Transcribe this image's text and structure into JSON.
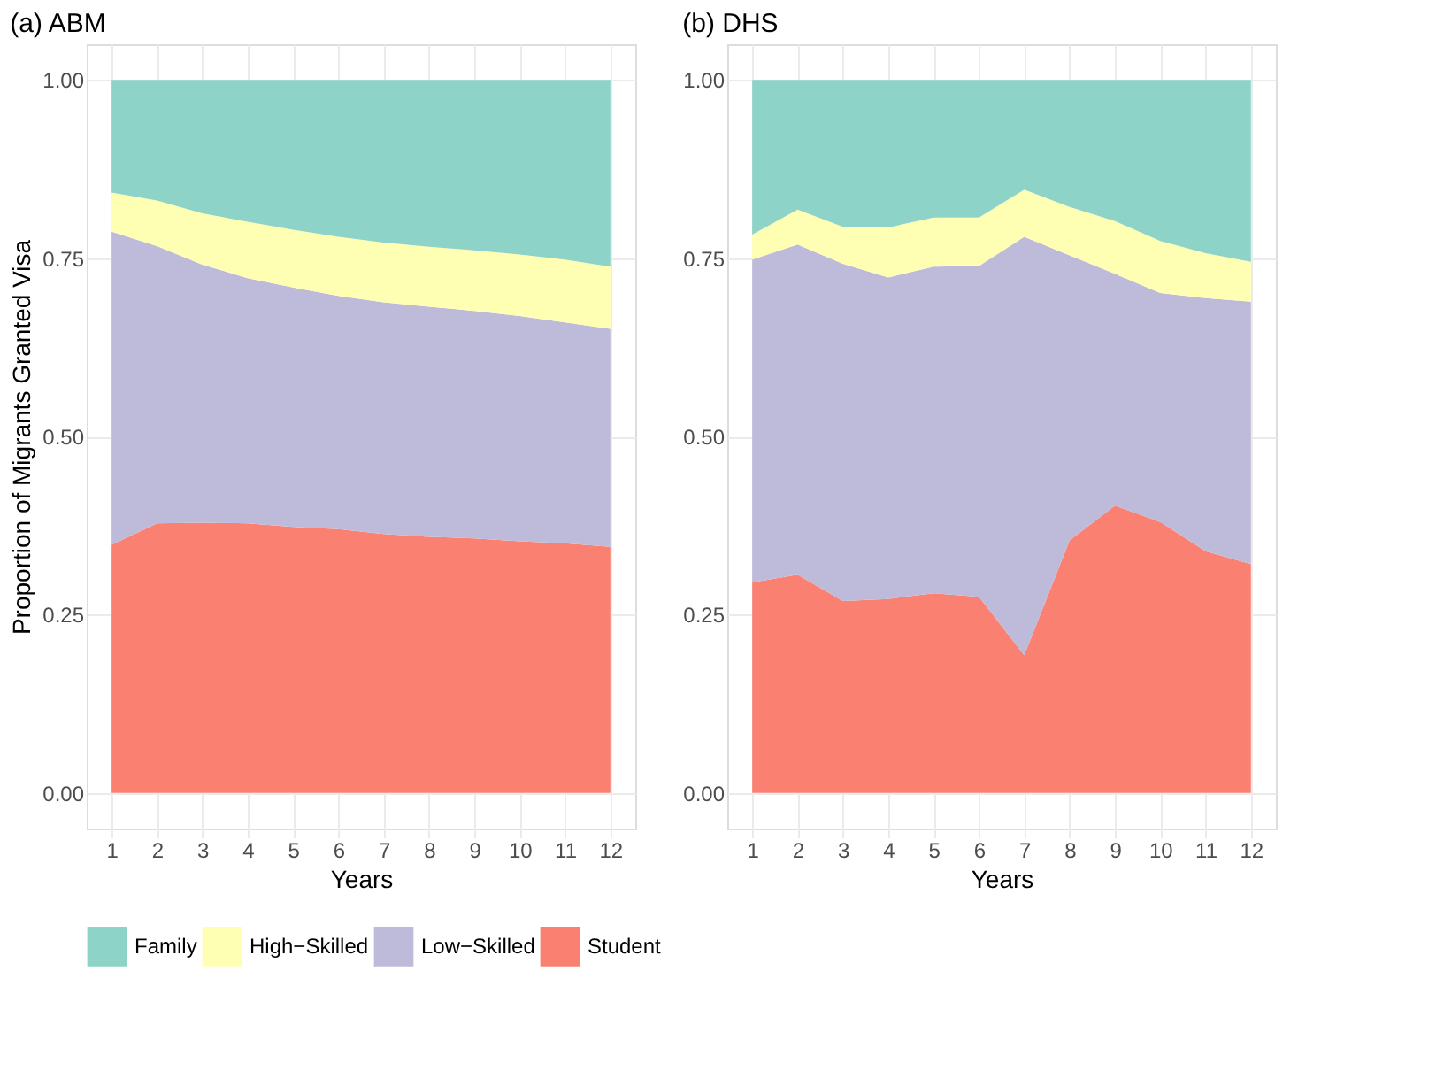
{
  "chart_data": [
    {
      "type": "area",
      "title": "(a) ABM",
      "xlabel": "Years",
      "ylabel": "Proportion of Migrants Granted Visa",
      "stacked": true,
      "grid": true,
      "legend": "bottom",
      "x": [
        1,
        2,
        3,
        4,
        5,
        6,
        7,
        8,
        9,
        10,
        11,
        12
      ],
      "xlim": [
        1,
        12
      ],
      "xticks": [
        1,
        2,
        3,
        4,
        5,
        6,
        7,
        8,
        9,
        10,
        11,
        12
      ],
      "ylim": [
        0,
        1
      ],
      "yticks": [
        {
          "value": 0,
          "label": "0.00"
        },
        {
          "value": 0.25,
          "label": "0.25"
        },
        {
          "value": 0.5,
          "label": "0.50"
        },
        {
          "value": 0.75,
          "label": "0.75"
        },
        {
          "value": 1,
          "label": "1.00"
        }
      ],
      "series": [
        {
          "name": "Student",
          "color": "#fa8072",
          "values": [
            0.348,
            0.378,
            0.379,
            0.378,
            0.373,
            0.37,
            0.363,
            0.359,
            0.357,
            0.353,
            0.35,
            0.345
          ]
        },
        {
          "name": "Low−Skilled",
          "color": "#bebada",
          "values": [
            0.439,
            0.389,
            0.362,
            0.344,
            0.336,
            0.327,
            0.325,
            0.323,
            0.319,
            0.316,
            0.31,
            0.306
          ]
        },
        {
          "name": "High−Skilled",
          "color": "#ffffb3",
          "values": [
            0.055,
            0.064,
            0.072,
            0.079,
            0.081,
            0.083,
            0.084,
            0.084,
            0.085,
            0.086,
            0.088,
            0.087
          ]
        },
        {
          "name": "Family",
          "color": "#8dd3c7",
          "values": [
            0.158,
            0.169,
            0.187,
            0.199,
            0.21,
            0.22,
            0.228,
            0.234,
            0.239,
            0.245,
            0.252,
            0.262
          ]
        }
      ]
    },
    {
      "type": "area",
      "title": "(b) DHS",
      "xlabel": "Years",
      "stacked": true,
      "grid": true,
      "legend": "bottom",
      "x": [
        1,
        2,
        3,
        4,
        5,
        6,
        7,
        8,
        9,
        10,
        11,
        12
      ],
      "xlim": [
        1,
        12
      ],
      "xticks": [
        1,
        2,
        3,
        4,
        5,
        6,
        7,
        8,
        9,
        10,
        11,
        12
      ],
      "ylim": [
        0,
        1
      ],
      "yticks": [
        {
          "value": 0,
          "label": "0.00"
        },
        {
          "value": 0.25,
          "label": "0.25"
        },
        {
          "value": 0.5,
          "label": "0.50"
        },
        {
          "value": 0.75,
          "label": "0.75"
        },
        {
          "value": 1,
          "label": "1.00"
        }
      ],
      "series": [
        {
          "name": "Student",
          "color": "#fa8072",
          "values": [
            0.295,
            0.306,
            0.269,
            0.272,
            0.28,
            0.275,
            0.193,
            0.354,
            0.403,
            0.38,
            0.339,
            0.321
          ]
        },
        {
          "name": "Low−Skilled",
          "color": "#bebada",
          "values": [
            0.453,
            0.463,
            0.473,
            0.451,
            0.458,
            0.464,
            0.587,
            0.4,
            0.325,
            0.321,
            0.355,
            0.368
          ]
        },
        {
          "name": "High−Skilled",
          "color": "#ffffb3",
          "values": [
            0.035,
            0.049,
            0.052,
            0.07,
            0.069,
            0.068,
            0.066,
            0.068,
            0.074,
            0.073,
            0.063,
            0.056
          ]
        },
        {
          "name": "Family",
          "color": "#8dd3c7",
          "values": [
            0.217,
            0.182,
            0.206,
            0.207,
            0.193,
            0.193,
            0.154,
            0.178,
            0.198,
            0.226,
            0.243,
            0.255
          ]
        }
      ]
    }
  ]
}
